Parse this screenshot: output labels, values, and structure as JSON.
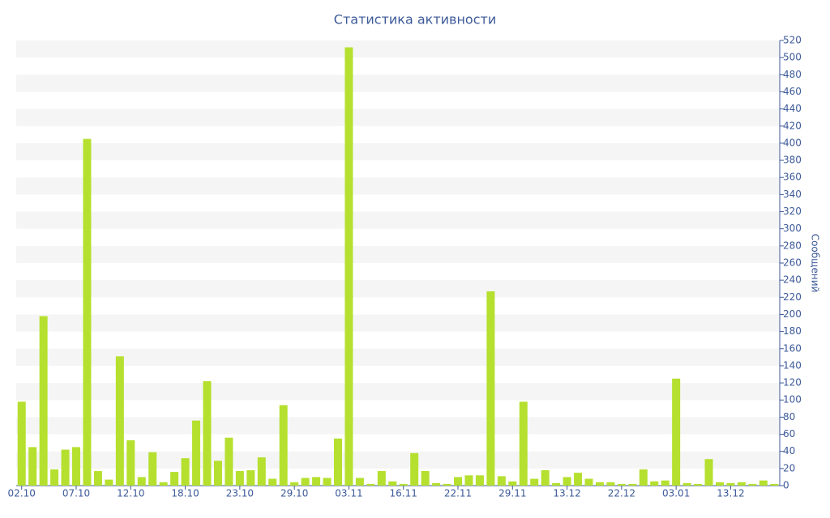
{
  "chart_data": {
    "type": "bar",
    "title": "Статистика активности",
    "y_axis_label": "Сообщений",
    "y_axis_side": "right",
    "categories": [
      "02.10",
      null,
      null,
      null,
      null,
      "07.10",
      null,
      null,
      null,
      null,
      "12.10",
      null,
      null,
      null,
      null,
      "18.10",
      null,
      null,
      null,
      null,
      "23.10",
      null,
      null,
      null,
      null,
      "29.10",
      null,
      null,
      null,
      null,
      "03.11",
      null,
      null,
      null,
      null,
      "16.11",
      null,
      null,
      null,
      null,
      "22.11",
      null,
      null,
      null,
      null,
      "29.11",
      null,
      null,
      null,
      null,
      "13.12",
      null,
      null,
      null,
      null,
      "22.12",
      null,
      null,
      null,
      null,
      "03.01",
      null,
      null,
      null,
      null,
      "13.12",
      null,
      null,
      null,
      null
    ],
    "values": [
      98,
      45,
      198,
      19,
      42,
      45,
      405,
      17,
      7,
      151,
      53,
      10,
      39,
      4,
      16,
      32,
      76,
      122,
      29,
      56,
      17,
      18,
      33,
      8,
      94,
      4,
      9,
      10,
      9,
      55,
      512,
      9,
      2,
      17,
      5,
      2,
      38,
      17,
      3,
      2,
      10,
      12,
      12,
      227,
      11,
      5,
      98,
      8,
      18,
      3,
      10,
      15,
      8,
      4,
      4,
      2,
      2,
      19,
      5,
      6,
      125,
      3,
      2,
      31,
      4,
      3,
      4,
      2,
      6,
      2
    ],
    "color": "#b5e02f",
    "ylim": [
      0,
      520
    ],
    "yticks": [
      0,
      20,
      40,
      60,
      80,
      100,
      120,
      140,
      160,
      180,
      200,
      220,
      240,
      260,
      280,
      300,
      320,
      340,
      360,
      380,
      400,
      420,
      440,
      460,
      480,
      500,
      520
    ],
    "grid": "alternate-bands",
    "band_color": "#f5f5f5"
  }
}
